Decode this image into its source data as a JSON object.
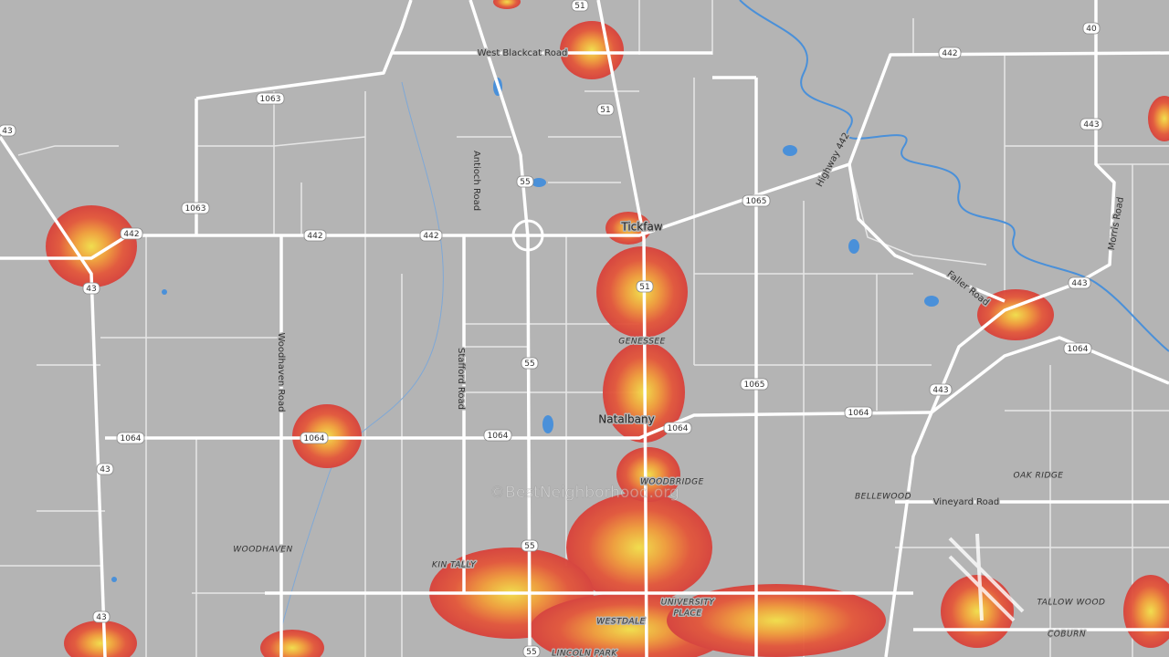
{
  "route_shields": [
    "51",
    "51",
    "51",
    "40",
    "442",
    "442",
    "442",
    "442",
    "443",
    "443",
    "443",
    "1063",
    "1063",
    "43",
    "43",
    "43",
    "43",
    "55",
    "55",
    "55",
    "55",
    "1065",
    "1065",
    "1064",
    "1064",
    "1064",
    "1064",
    "1064",
    "1064"
  ],
  "road_labels": [
    "West Blackcat Road",
    "Antioch Road",
    "Highway 442",
    "Morris Road",
    "Faller Road",
    "Woodhaven Road",
    "Stafford Road",
    "Vineyard Road"
  ],
  "town_labels": [
    "Tickfaw",
    "Natalbany"
  ],
  "place_labels": [
    "GENESSEE",
    "WOODBRIDGE",
    "OAK RIDGE",
    "BELLEWOOD",
    "WOODHAVEN",
    "KIN TALLY",
    "UNIVERSITY",
    "PLACE",
    "WESTDALE",
    "LINCOLN PARK",
    "TALLOW WOOD",
    "COBURN"
  ],
  "watermark": "©BestNeighborhood.org"
}
